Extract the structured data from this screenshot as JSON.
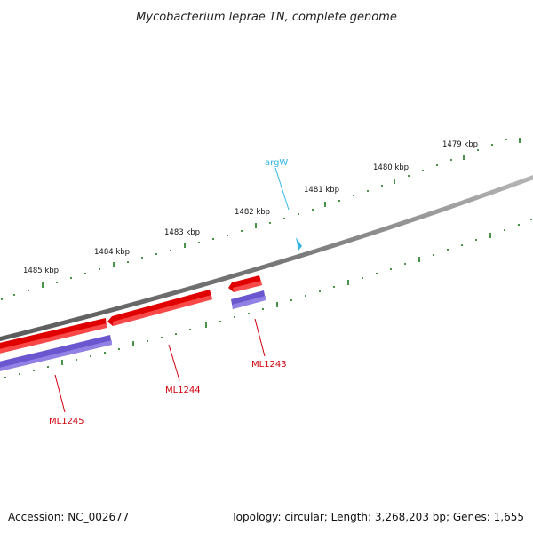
{
  "title": "Mycobacterium leprae TN, complete genome",
  "footer": {
    "accession": "Accession: NC_002677",
    "summary": "Topology: circular; Length: 3,268,203 bp; Genes: 1,655"
  },
  "colors": {
    "backbone": "#858585",
    "forward_gene": "#ff0000",
    "reverse_gene": "#6f5dd0",
    "tick": "#1d7a1d",
    "gene_label": "#d0000b",
    "trna": "#33b6e6"
  },
  "ruler_labels": [
    "1479 kbp",
    "1480 kbp",
    "1481 kbp",
    "1482 kbp",
    "1483 kbp",
    "1484 kbp",
    "1485 kbp"
  ],
  "features": [
    {
      "name": "argW",
      "type": "tRNA"
    },
    {
      "name": "ML1243",
      "type": "gene"
    },
    {
      "name": "ML1244",
      "type": "gene"
    },
    {
      "name": "ML1245",
      "type": "gene"
    }
  ]
}
